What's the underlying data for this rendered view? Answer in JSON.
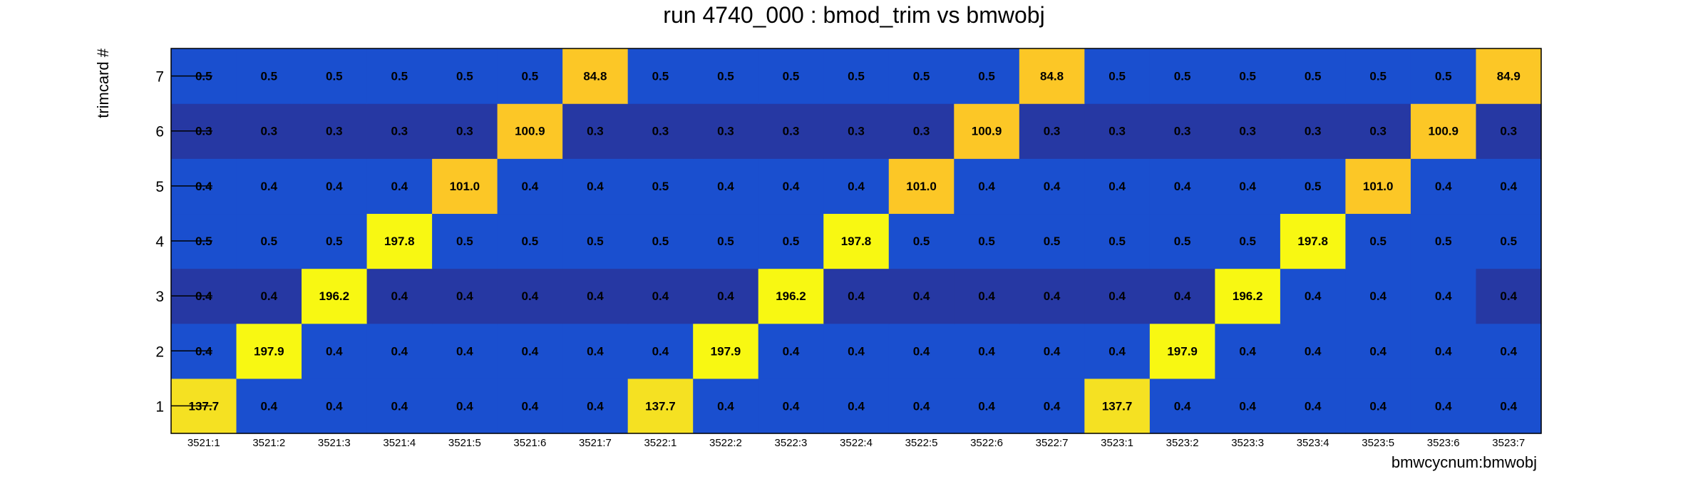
{
  "chart_data": {
    "type": "heatmap",
    "title": "run 4740_000 : bmod_trim vs bmwobj",
    "xlabel": "bmwcycnum:bmwobj",
    "ylabel": "trimcard #",
    "x_categories": [
      "3521:1",
      "3521:2",
      "3521:3",
      "3521:4",
      "3521:5",
      "3521:6",
      "3521:7",
      "3522:1",
      "3522:2",
      "3522:3",
      "3522:4",
      "3522:5",
      "3522:6",
      "3522:7",
      "3523:1",
      "3523:2",
      "3523:3",
      "3523:4",
      "3523:5",
      "3523:6",
      "3523:7"
    ],
    "y_categories": [
      "1",
      "2",
      "3",
      "4",
      "5",
      "6",
      "7"
    ],
    "value_labels": [
      [
        "137.7",
        "0.4",
        "0.4",
        "0.4",
        "0.4",
        "0.4",
        "0.4",
        "137.7",
        "0.4",
        "0.4",
        "0.4",
        "0.4",
        "0.4",
        "0.4",
        "137.7",
        "0.4",
        "0.4",
        "0.4",
        "0.4",
        "0.4",
        "0.4"
      ],
      [
        "0.4",
        "197.9",
        "0.4",
        "0.4",
        "0.4",
        "0.4",
        "0.4",
        "0.4",
        "197.9",
        "0.4",
        "0.4",
        "0.4",
        "0.4",
        "0.4",
        "0.4",
        "197.9",
        "0.4",
        "0.4",
        "0.4",
        "0.4",
        "0.4"
      ],
      [
        "0.4",
        "0.4",
        "196.2",
        "0.4",
        "0.4",
        "0.4",
        "0.4",
        "0.4",
        "0.4",
        "196.2",
        "0.4",
        "0.4",
        "0.4",
        "0.4",
        "0.4",
        "0.4",
        "196.2",
        "0.4",
        "0.4",
        "0.4",
        "0.4"
      ],
      [
        "0.5",
        "0.5",
        "0.5",
        "197.8",
        "0.5",
        "0.5",
        "0.5",
        "0.5",
        "0.5",
        "0.5",
        "197.8",
        "0.5",
        "0.5",
        "0.5",
        "0.5",
        "0.5",
        "0.5",
        "197.8",
        "0.5",
        "0.5",
        "0.5"
      ],
      [
        "0.4",
        "0.4",
        "0.4",
        "0.4",
        "101.0",
        "0.4",
        "0.4",
        "0.5",
        "0.4",
        "0.4",
        "0.4",
        "101.0",
        "0.4",
        "0.4",
        "0.4",
        "0.4",
        "0.4",
        "0.5",
        "101.0",
        "0.4",
        "0.4"
      ],
      [
        "0.3",
        "0.3",
        "0.3",
        "0.3",
        "0.3",
        "100.9",
        "0.3",
        "0.3",
        "0.3",
        "0.3",
        "0.3",
        "0.3",
        "100.9",
        "0.3",
        "0.3",
        "0.3",
        "0.3",
        "0.3",
        "0.3",
        "100.9",
        "0.3"
      ],
      [
        "0.5",
        "0.5",
        "0.5",
        "0.5",
        "0.5",
        "0.5",
        "84.8",
        "0.5",
        "0.5",
        "0.5",
        "0.5",
        "0.5",
        "0.5",
        "84.8",
        "0.5",
        "0.5",
        "0.5",
        "0.5",
        "0.5",
        "0.5",
        "84.9"
      ]
    ],
    "color_levels": [
      [
        "yellow",
        "blue",
        "blue",
        "blue",
        "blue",
        "blue",
        "blue",
        "yellow",
        "blue",
        "blue",
        "blue",
        "blue",
        "blue",
        "blue",
        "yellow",
        "blue",
        "blue",
        "blue",
        "blue",
        "blue",
        "blue"
      ],
      [
        "blue",
        "bright_yellow",
        "blue",
        "blue",
        "blue",
        "blue",
        "blue",
        "blue",
        "bright_yellow",
        "blue",
        "blue",
        "blue",
        "blue",
        "blue",
        "blue",
        "bright_yellow",
        "blue",
        "blue",
        "blue",
        "blue",
        "blue"
      ],
      [
        "dark_blue",
        "dark_blue",
        "bright_yellow",
        "dark_blue",
        "dark_blue",
        "dark_blue",
        "dark_blue",
        "dark_blue",
        "dark_blue",
        "bright_yellow",
        "dark_blue",
        "dark_blue",
        "dark_blue",
        "dark_blue",
        "dark_blue",
        "dark_blue",
        "bright_yellow",
        "blue",
        "blue",
        "blue",
        "dark_blue"
      ],
      [
        "blue",
        "blue",
        "blue",
        "bright_yellow",
        "blue",
        "blue",
        "blue",
        "blue",
        "blue",
        "blue",
        "bright_yellow",
        "blue",
        "blue",
        "blue",
        "blue",
        "blue",
        "blue",
        "bright_yellow",
        "blue",
        "blue",
        "blue"
      ],
      [
        "blue",
        "blue",
        "blue",
        "blue",
        "gold",
        "blue",
        "blue",
        "blue",
        "blue",
        "blue",
        "blue",
        "gold",
        "blue",
        "blue",
        "blue",
        "blue",
        "blue",
        "blue",
        "gold",
        "blue",
        "blue"
      ],
      [
        "dark_blue",
        "dark_blue",
        "dark_blue",
        "dark_blue",
        "dark_blue",
        "gold",
        "dark_blue",
        "dark_blue",
        "dark_blue",
        "dark_blue",
        "dark_blue",
        "dark_blue",
        "gold",
        "dark_blue",
        "dark_blue",
        "dark_blue",
        "dark_blue",
        "dark_blue",
        "dark_blue",
        "gold",
        "dark_blue"
      ],
      [
        "blue",
        "blue",
        "blue",
        "blue",
        "blue",
        "blue",
        "gold",
        "blue",
        "blue",
        "blue",
        "blue",
        "blue",
        "blue",
        "gold",
        "blue",
        "blue",
        "blue",
        "blue",
        "blue",
        "blue",
        "gold"
      ]
    ],
    "palette": {
      "blue": "#1a4fcf",
      "dark_blue": "#2638a3",
      "bright_yellow": "#f8f812",
      "yellow": "#f5e122",
      "gold": "#fcc726"
    },
    "legend": "none",
    "grid": false
  }
}
